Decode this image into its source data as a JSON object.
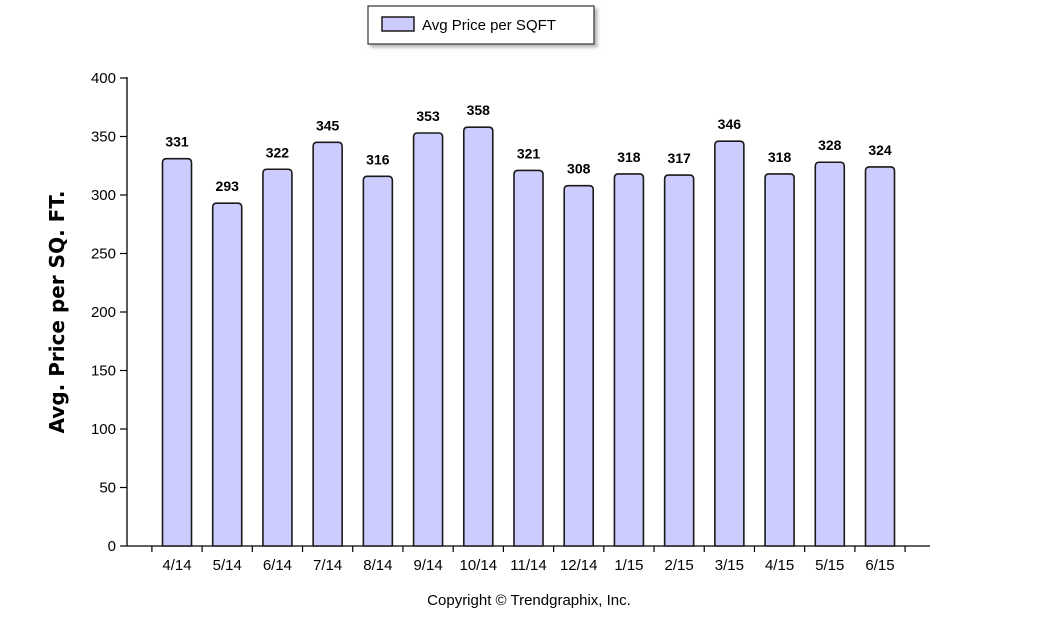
{
  "chart_data": {
    "type": "bar",
    "categories": [
      "4/14",
      "5/14",
      "6/14",
      "7/14",
      "8/14",
      "9/14",
      "10/14",
      "11/14",
      "12/14",
      "1/15",
      "2/15",
      "3/15",
      "4/15",
      "5/15",
      "6/15"
    ],
    "series": [
      {
        "name": "Avg Price per SQFT",
        "values": [
          331,
          293,
          322,
          345,
          316,
          353,
          358,
          321,
          308,
          318,
          317,
          346,
          318,
          328,
          324
        ]
      }
    ],
    "ylabel": "Avg. Price per SQ. FT.",
    "xlabel": "",
    "ylim": [
      0,
      400
    ],
    "yticks": [
      0,
      50,
      100,
      150,
      200,
      250,
      300,
      350,
      400
    ],
    "legend_position": "top-center",
    "grid": false,
    "colors": {
      "bar_fill": "#ccccff",
      "bar_stroke": "#1a1a1a"
    }
  },
  "footer": {
    "copyright": "Copyright © Trendgraphix, Inc."
  }
}
